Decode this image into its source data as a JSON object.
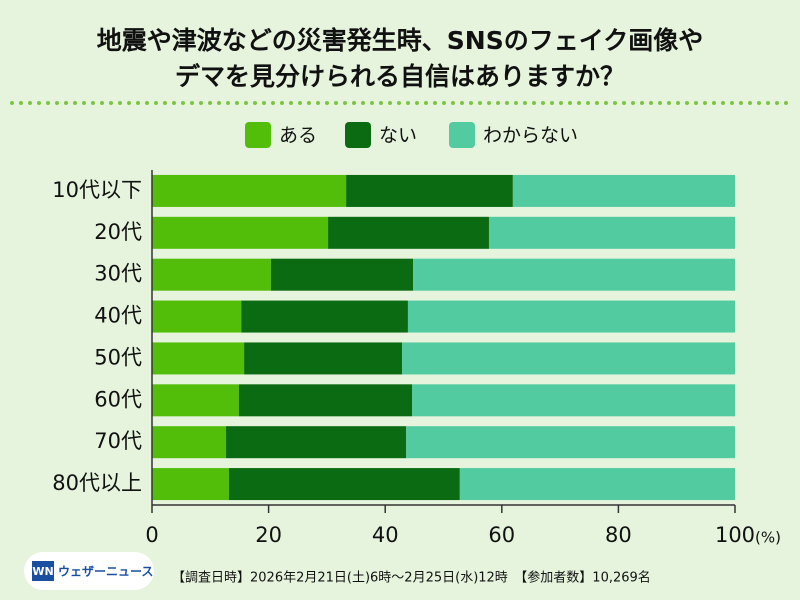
{
  "chart_data": {
    "type": "bar",
    "orientation": "horizontal",
    "stacked": true,
    "title": [
      "地震や津波などの災害発生時、SNSのフェイク画像や",
      "デマを見分けられる自信はありますか？"
    ],
    "categories": [
      "10代以下",
      "20代",
      "30代",
      "40代",
      "50代",
      "60代",
      "70代",
      "80代以上"
    ],
    "series": [
      {
        "name": "ある",
        "color": "#52be0a",
        "values": [
          33.3,
          30.2,
          20.4,
          15.3,
          15.8,
          14.9,
          12.7,
          13.2
        ]
      },
      {
        "name": "ない",
        "color": "#0b6b12",
        "values": [
          28.6,
          27.6,
          24.4,
          28.6,
          27.1,
          29.7,
          30.9,
          39.6
        ]
      },
      {
        "name": "わからない",
        "color": "#52cba0",
        "values": [
          38.1,
          42.2,
          55.2,
          56.1,
          57.1,
          55.4,
          56.4,
          47.2
        ]
      }
    ],
    "xlim": [
      0,
      100
    ],
    "xticks": [
      0,
      20,
      40,
      60,
      80,
      100
    ],
    "xlabel": "(%)",
    "logo_mark": "WN",
    "logo": "ウェザーニュース",
    "footnote": "【調査日時】2026年2月21日(土)6時～2月25日(水)12時　【参加者数】10,269名"
  }
}
